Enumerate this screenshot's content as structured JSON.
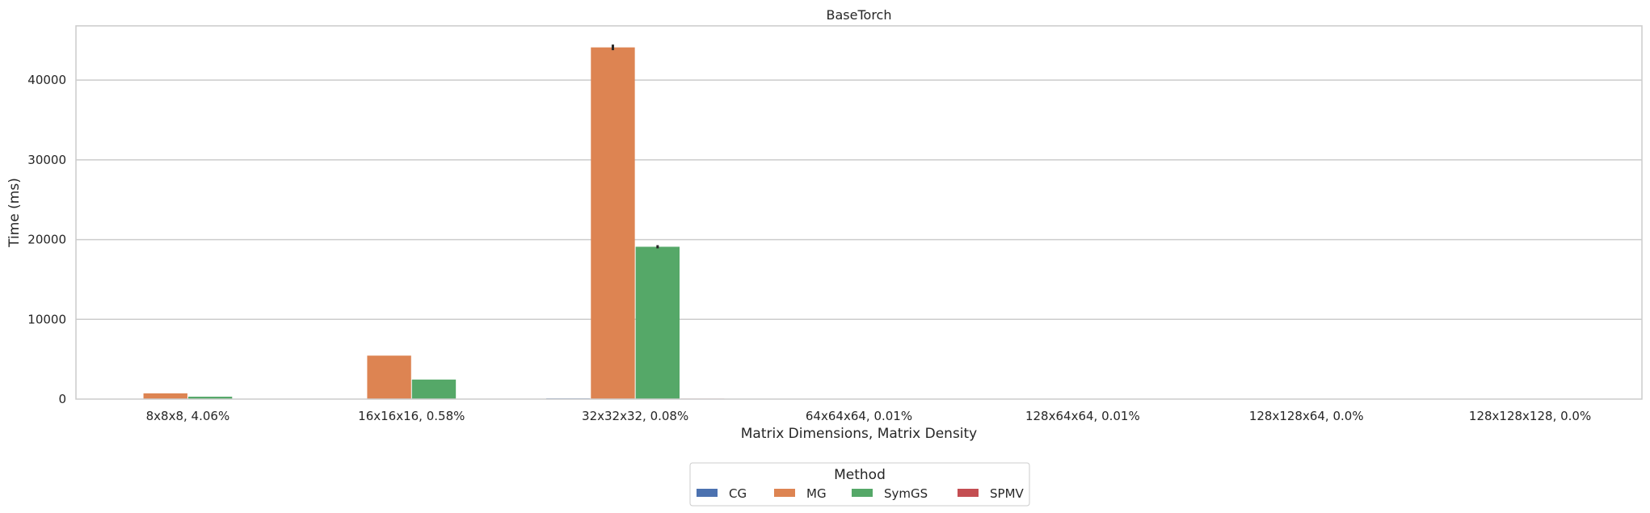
{
  "chart_data": {
    "type": "bar",
    "title": "BaseTorch",
    "xlabel": "Matrix Dimensions, Matrix Density",
    "ylabel": "Time (ms)",
    "ylim": [
      0,
      46800
    ],
    "yticks": [
      "0",
      "10000",
      "20000",
      "30000",
      "40000"
    ],
    "ytick_values": [
      0,
      10000,
      20000,
      30000,
      40000
    ],
    "grid": true,
    "categories": [
      "8x8x8, 4.06%",
      "16x16x16, 0.58%",
      "32x32x32, 0.08%",
      "64x64x64, 0.01%",
      "128x64x64, 0.01%",
      "128x128x64, 0.0%",
      "128x128x128, 0.0%"
    ],
    "series": [
      {
        "name": "CG",
        "color": "#4c72b0",
        "values": [
          8,
          20,
          90,
          null,
          null,
          null,
          null
        ],
        "errors": [
          0,
          0,
          0,
          null,
          null,
          null,
          null
        ]
      },
      {
        "name": "MG",
        "color": "#dd8452",
        "values": [
          720,
          5450,
          44100,
          null,
          null,
          null,
          null
        ],
        "errors": [
          0,
          0,
          350,
          null,
          null,
          null,
          null
        ]
      },
      {
        "name": "SymGS",
        "color": "#55a868",
        "values": [
          300,
          2450,
          19100,
          null,
          null,
          null,
          null
        ],
        "errors": [
          0,
          0,
          200,
          null,
          null,
          null,
          null
        ]
      },
      {
        "name": "SPMV",
        "color": "#c44e52",
        "values": [
          5,
          15,
          60,
          null,
          null,
          null,
          null
        ],
        "errors": [
          0,
          0,
          0,
          null,
          null,
          null,
          null
        ]
      }
    ],
    "legend": {
      "title": "Method",
      "placement": "bottom-center"
    }
  }
}
